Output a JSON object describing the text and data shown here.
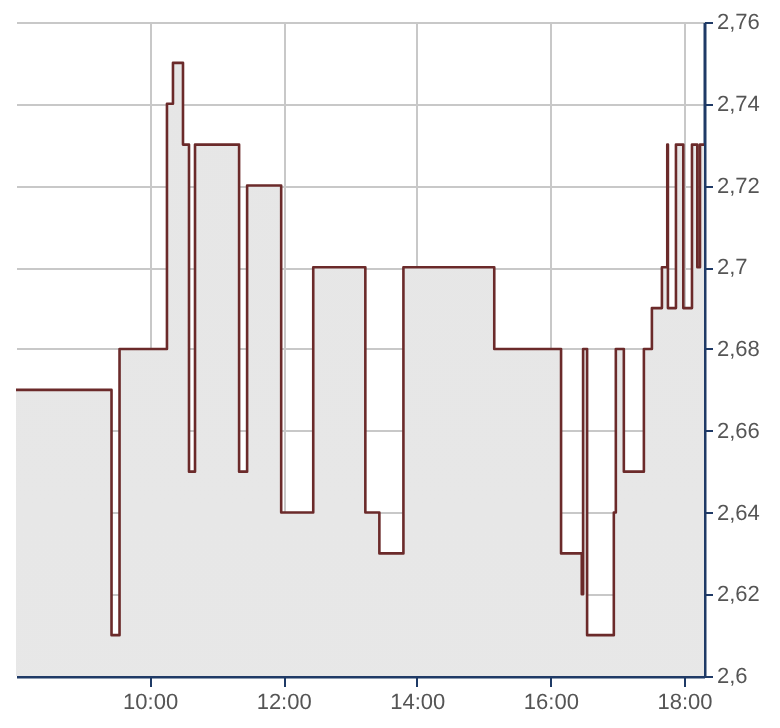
{
  "chart_data": {
    "type": "step",
    "x": [
      8,
      9.43,
      9.55,
      10.26,
      10.35,
      10.5,
      10.59,
      10.68,
      11.34,
      11.46,
      11.97,
      12.45,
      13.23,
      13.44,
      13.8,
      15.16,
      16.16,
      16.47,
      16.49,
      16.55,
      16.95,
      16.98,
      17.1,
      17.4,
      17.52,
      17.67,
      17.75,
      17.76,
      17.88,
      17.99,
      18.12,
      18.2,
      18.24,
      18.3
    ],
    "series": [
      {
        "color": "#6b2a2a",
        "values": [
          2.67,
          2.61,
          2.68,
          2.74,
          2.75,
          2.73,
          2.65,
          2.73,
          2.65,
          2.72,
          2.64,
          2.7,
          2.64,
          2.63,
          2.7,
          2.68,
          2.63,
          2.62,
          2.68,
          2.61,
          2.64,
          2.68,
          2.65,
          2.68,
          2.69,
          2.7,
          2.73,
          2.69,
          2.73,
          2.69,
          2.73,
          2.7,
          2.73,
          2.73
        ]
      }
    ],
    "xlim": [
      8,
      18.3
    ],
    "xticks": [
      {
        "value": 10,
        "label": "10:00"
      },
      {
        "value": 12,
        "label": "12:00"
      },
      {
        "value": 14,
        "label": "14:00"
      },
      {
        "value": 16,
        "label": "16:00"
      },
      {
        "value": 18,
        "label": "18:00"
      }
    ],
    "ylim": [
      2.6,
      2.76
    ],
    "yticks": [
      {
        "value": 2.6,
        "label": "2,6"
      },
      {
        "value": 2.62,
        "label": "2,62"
      },
      {
        "value": 2.64,
        "label": "2,64"
      },
      {
        "value": 2.66,
        "label": "2,66"
      },
      {
        "value": 2.68,
        "label": "2,68"
      },
      {
        "value": 2.7,
        "label": "2,7"
      },
      {
        "value": 2.72,
        "label": "2,72"
      },
      {
        "value": 2.74,
        "label": "2,74"
      },
      {
        "value": 2.76,
        "label": "2,76"
      }
    ],
    "grid": true
  }
}
